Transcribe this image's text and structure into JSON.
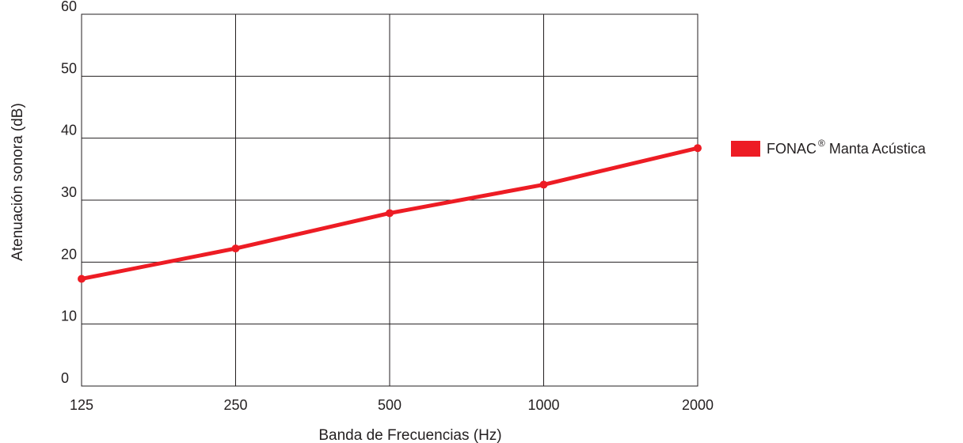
{
  "chart_data": {
    "type": "line",
    "title": "",
    "xlabel": "Banda de Frecuencias (Hz)",
    "ylabel": "Atenuación sonora (dB)",
    "categories": [
      "125",
      "250",
      "500",
      "1000",
      "2000"
    ],
    "series": [
      {
        "name": "FONAC",
        "name_superscript": "®",
        "name_suffix": " Manta Acústica",
        "color": "#ed1c24",
        "values": [
          17.3,
          22.2,
          27.9,
          32.5,
          38.4
        ]
      }
    ],
    "ylim": [
      0,
      60
    ],
    "yticks": [
      "0",
      "10",
      "20",
      "30",
      "40",
      "50",
      "60"
    ],
    "grid": true,
    "legend_position": "right"
  }
}
